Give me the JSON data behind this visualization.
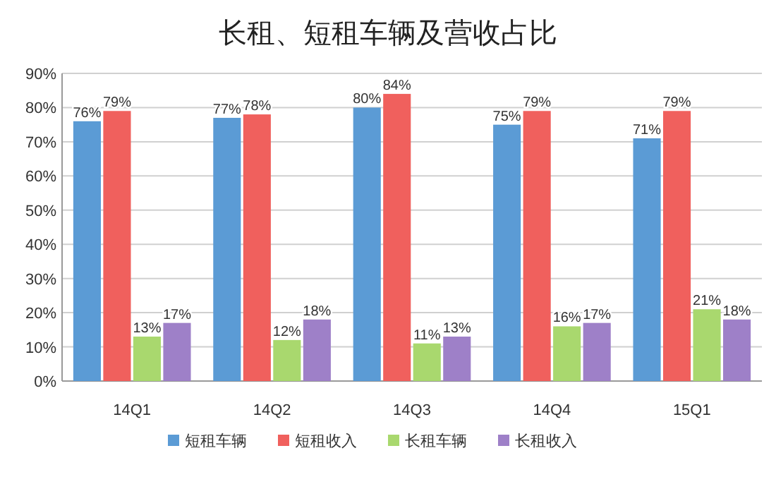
{
  "chart_data": {
    "type": "bar",
    "title": "长租、短租车辆及营收占比",
    "categories": [
      "14Q1",
      "14Q2",
      "14Q3",
      "14Q4",
      "15Q1"
    ],
    "series": [
      {
        "name": "短租车辆",
        "color": "#5b9bd5",
        "values": [
          76,
          77,
          80,
          75,
          71
        ],
        "value_labels": [
          "76%",
          "77%",
          "80%",
          "75%",
          "71%"
        ]
      },
      {
        "name": "短租收入",
        "color": "#f0605d",
        "values": [
          79,
          78,
          84,
          79,
          79
        ],
        "value_labels": [
          "79%",
          "78%",
          "84%",
          "79%",
          "79%"
        ]
      },
      {
        "name": "长租车辆",
        "color": "#a9d86e",
        "values": [
          13,
          12,
          11,
          16,
          21
        ],
        "value_labels": [
          "13%",
          "12%",
          "11%",
          "16%",
          "21%"
        ]
      },
      {
        "name": "长租收入",
        "color": "#9e80c8",
        "values": [
          17,
          18,
          13,
          17,
          18
        ],
        "value_labels": [
          "17%",
          "18%",
          "13%",
          "17%",
          "18%"
        ]
      }
    ],
    "ylim": [
      0,
      90
    ],
    "yticks": [
      {
        "value": 0,
        "label": "0%"
      },
      {
        "value": 10,
        "label": "10%"
      },
      {
        "value": 20,
        "label": "20%"
      },
      {
        "value": 30,
        "label": "30%"
      },
      {
        "value": 40,
        "label": "40%"
      },
      {
        "value": 50,
        "label": "50%"
      },
      {
        "value": 60,
        "label": "60%"
      },
      {
        "value": 70,
        "label": "70%"
      },
      {
        "value": 80,
        "label": "80%"
      },
      {
        "value": 90,
        "label": "90%"
      }
    ],
    "grid": "y",
    "legend": "bottom"
  }
}
